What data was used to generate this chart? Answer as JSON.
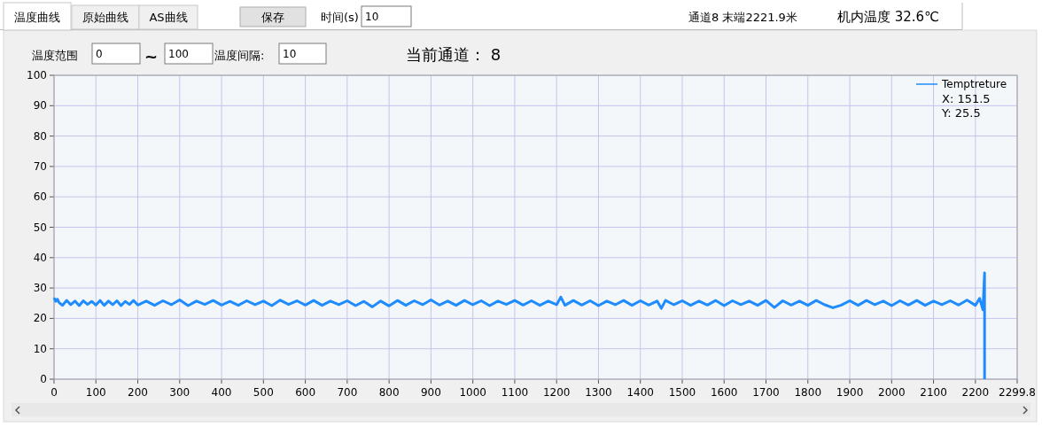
{
  "chart_data": {
    "type": "line",
    "title": "当前通道：  8",
    "annotations": [
      "温度曲线",
      "原始曲线",
      "AS曲线",
      "保存",
      "时间(s)",
      "10",
      "通道8  末端2221.9米",
      "机内温度  32.6℃",
      "温度范围",
      "0",
      "~",
      "100",
      "温度间隔:",
      "10",
      "X: 151.5",
      "Y: 25.5"
    ],
    "xlim": [
      0,
      2299.8
    ],
    "ylim": [
      0,
      100
    ],
    "xticks": [
      0,
      100,
      200,
      300,
      400,
      500,
      600,
      700,
      800,
      900,
      1000,
      1100,
      1200,
      1300,
      1400,
      1500,
      1600,
      1700,
      1800,
      1900,
      2000,
      2100,
      2200,
      2299.8
    ],
    "yticks": [
      0,
      10,
      20,
      30,
      40,
      50,
      60,
      70,
      80,
      90,
      100
    ],
    "grid": true,
    "legend": "top right",
    "series": [
      {
        "name": "Temptreture",
        "color": "#1e8cff",
        "x": [
          0,
          4,
          8,
          12,
          20,
          30,
          40,
          50,
          60,
          70,
          80,
          90,
          100,
          110,
          120,
          130,
          140,
          150,
          160,
          170,
          180,
          190,
          200,
          220,
          240,
          260,
          280,
          300,
          320,
          340,
          360,
          380,
          400,
          420,
          440,
          460,
          480,
          500,
          520,
          540,
          560,
          580,
          600,
          620,
          640,
          660,
          680,
          700,
          720,
          740,
          760,
          780,
          800,
          820,
          840,
          860,
          880,
          900,
          920,
          940,
          960,
          980,
          1000,
          1020,
          1040,
          1060,
          1080,
          1100,
          1120,
          1140,
          1160,
          1180,
          1200,
          1210,
          1220,
          1240,
          1260,
          1280,
          1300,
          1320,
          1340,
          1360,
          1380,
          1400,
          1420,
          1440,
          1450,
          1460,
          1480,
          1500,
          1520,
          1540,
          1560,
          1580,
          1600,
          1620,
          1640,
          1660,
          1680,
          1700,
          1720,
          1740,
          1760,
          1780,
          1800,
          1820,
          1840,
          1860,
          1880,
          1900,
          1920,
          1940,
          1960,
          1980,
          2000,
          2020,
          2040,
          2060,
          2080,
          2100,
          2120,
          2140,
          2160,
          2180,
          2200,
          2210,
          2218,
          2221.9,
          2221.9
        ],
        "values": [
          26.8,
          25.6,
          26.3,
          25.2,
          24.3,
          25.9,
          24.5,
          25.7,
          24.2,
          25.8,
          24.6,
          25.6,
          24.4,
          25.9,
          24.3,
          25.7,
          24.5,
          25.8,
          24.2,
          25.6,
          24.6,
          25.9,
          24.4,
          25.7,
          24.3,
          25.8,
          24.5,
          26.1,
          24.2,
          25.7,
          24.6,
          25.9,
          24.4,
          25.6,
          24.3,
          25.8,
          24.5,
          25.7,
          24.2,
          26.0,
          24.6,
          25.8,
          24.4,
          25.9,
          24.3,
          25.7,
          24.5,
          25.8,
          24.2,
          25.6,
          23.8,
          25.7,
          24.1,
          25.9,
          24.3,
          25.8,
          24.5,
          26.1,
          24.4,
          25.7,
          24.3,
          25.9,
          24.5,
          25.8,
          24.2,
          25.7,
          24.6,
          25.9,
          24.4,
          25.8,
          24.3,
          25.7,
          24.5,
          27.0,
          24.3,
          25.9,
          24.4,
          25.8,
          24.2,
          25.7,
          24.5,
          25.9,
          24.3,
          25.8,
          24.4,
          25.7,
          23.3,
          25.9,
          24.5,
          25.8,
          24.3,
          25.7,
          24.4,
          25.9,
          24.2,
          25.8,
          24.5,
          25.7,
          24.3,
          25.9,
          23.6,
          25.8,
          24.4,
          25.7,
          24.3,
          25.9,
          24.5,
          23.5,
          24.4,
          25.8,
          24.3,
          25.9,
          24.5,
          25.7,
          24.2,
          25.8,
          24.4,
          25.9,
          24.3,
          25.7,
          24.5,
          25.8,
          24.4,
          26.0,
          24.3,
          26.6,
          22.8,
          35,
          0
        ]
      }
    ]
  }
}
